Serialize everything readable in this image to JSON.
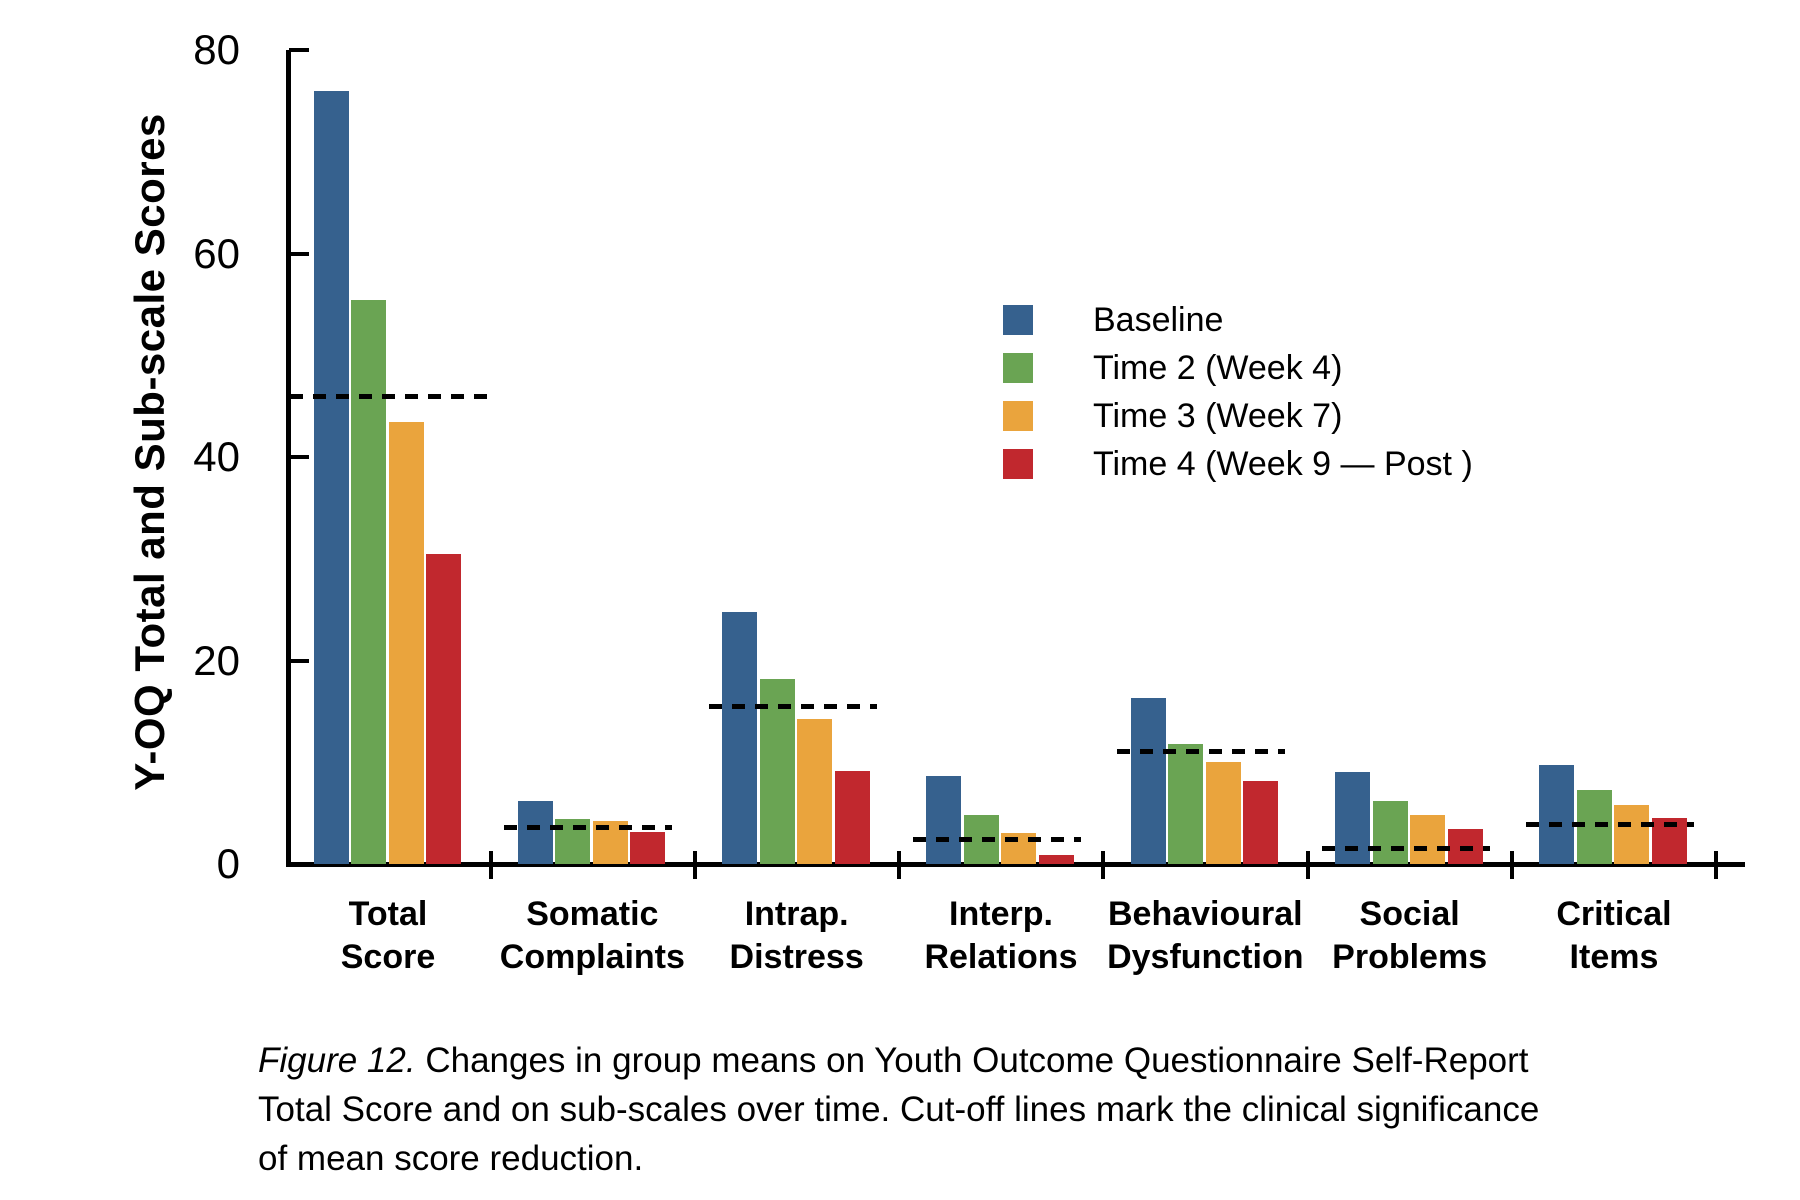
{
  "figure": {
    "caption": {
      "prefix": "Figure 12.",
      "line1": "Changes in group means on Youth Outcome Questionnaire Self-Report",
      "line2": "Total Score and on sub-scales over time. Cut-off lines mark the clinical significance",
      "line3": "of mean score reduction."
    }
  },
  "chart_data": {
    "type": "bar",
    "title": "",
    "xlabel": "",
    "ylabel": "Y-OQ Total and Sub-scale Scores",
    "ylim": [
      0,
      80
    ],
    "yticks": [
      0,
      20,
      40,
      60,
      80
    ],
    "grid": false,
    "legend_position": "upper right inside",
    "categories": [
      "Total Score",
      "Somatic Complaints",
      "Intrap. Distress",
      "Interp. Relations",
      "Behavioural Dysfunction",
      "Social Problems",
      "Critical Items"
    ],
    "category_label_lines": [
      [
        "Total",
        "Score"
      ],
      [
        "Somatic",
        "Complaints"
      ],
      [
        "Intrap.",
        "Distress"
      ],
      [
        "Interp.",
        "Relations"
      ],
      [
        "Behavioural",
        "Dysfunction"
      ],
      [
        "Social",
        "Problems"
      ],
      [
        "Critical",
        "Items"
      ]
    ],
    "series": [
      {
        "name": "Baseline",
        "color": "#36618E",
        "values": [
          76.0,
          6.2,
          24.8,
          8.7,
          16.3,
          9.0,
          9.7
        ]
      },
      {
        "name": "Time 2 (Week 4)",
        "color": "#6AA453",
        "values": [
          55.5,
          4.4,
          18.2,
          4.8,
          11.8,
          6.2,
          7.3
        ]
      },
      {
        "name": "Time 3 (Week 7)",
        "color": "#EAA43D",
        "values": [
          43.5,
          4.2,
          14.3,
          3.0,
          10.0,
          4.8,
          5.8
        ]
      },
      {
        "name": "Time 4 (Week 9 — Post )",
        "color": "#C1282E",
        "values": [
          30.5,
          3.1,
          9.1,
          0.9,
          8.2,
          3.4,
          4.5
        ]
      }
    ],
    "cutoffs": {
      "style": "dashed",
      "color": "#000000",
      "values": [
        46,
        3.6,
        15.5,
        2.4,
        11.1,
        1.5,
        3.9
      ]
    }
  }
}
